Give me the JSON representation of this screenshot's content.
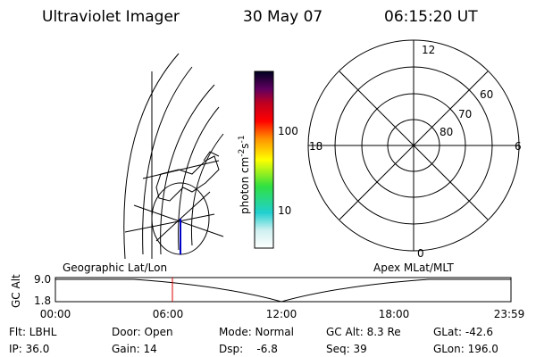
{
  "header": {
    "instrument": "Ultraviolet Imager",
    "date": "30 May 07",
    "time": "06:15:20 UT"
  },
  "colorbar": {
    "unit": [
      "photon cm",
      "-2",
      "s",
      "-1"
    ],
    "ticks": [
      "100",
      "10"
    ]
  },
  "polar": {
    "mlt_labels": [
      "12",
      "18",
      "6",
      "0"
    ],
    "lat_labels": [
      "60",
      "70",
      "80"
    ]
  },
  "timeline": {
    "axis_label": "GC Alt",
    "alt_ticks": [
      "9.0",
      "1.8"
    ],
    "left_title": "Geographic Lat/Lon",
    "right_title": "Apex MLat/MLT",
    "time_ticks": [
      "00:00",
      "06:00",
      "12:00",
      "18:00",
      "23:59"
    ]
  },
  "info": {
    "rows": [
      [
        "Flt: LBHL",
        "Door: Open",
        "Mode: Normal",
        "GC Alt: 8.3 Re",
        "GLat: -42.6"
      ],
      [
        "IP: 36.0",
        "Gain: 14",
        "Dsp:    -6.8",
        "Seq: 39",
        "GLon: 196.0"
      ]
    ]
  }
}
